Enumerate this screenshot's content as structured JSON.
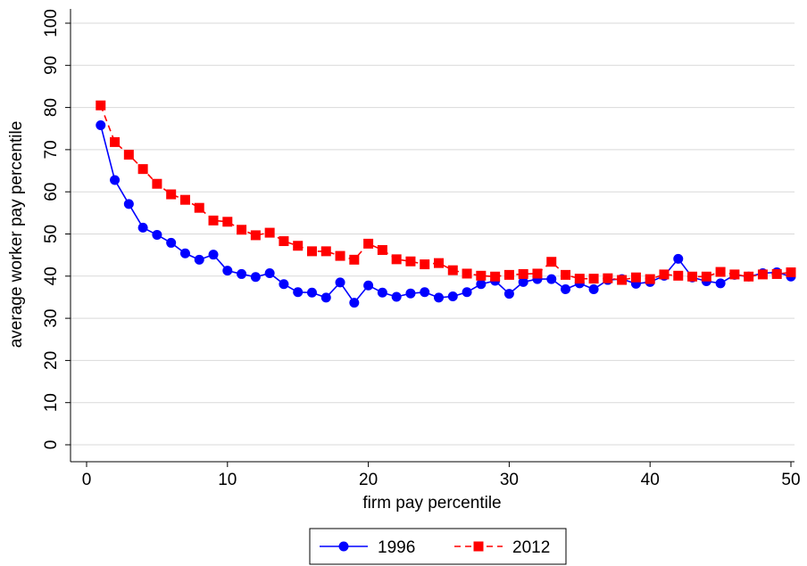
{
  "chart_data": {
    "type": "line",
    "title": "",
    "xlabel": "firm pay percentile",
    "ylabel": "average worker pay percentile",
    "xlim": [
      0,
      50
    ],
    "ylim": [
      0,
      100
    ],
    "xticks": [
      0,
      10,
      20,
      30,
      40,
      50
    ],
    "yticks": [
      0,
      10,
      20,
      30,
      40,
      50,
      60,
      70,
      80,
      90,
      100
    ],
    "grid": true,
    "legend_position": "bottom",
    "x": [
      1,
      2,
      3,
      4,
      5,
      6,
      7,
      8,
      9,
      10,
      11,
      12,
      13,
      14,
      15,
      16,
      17,
      18,
      19,
      20,
      21,
      22,
      23,
      24,
      25,
      26,
      27,
      28,
      29,
      30,
      31,
      32,
      33,
      34,
      35,
      36,
      37,
      38,
      39,
      40,
      41,
      42,
      43,
      44,
      45,
      46,
      47,
      48,
      49,
      50
    ],
    "series": [
      {
        "name": "1996",
        "color": "#0000ff",
        "marker": "circle",
        "line_style": "solid",
        "values": [
          75.8,
          62.8,
          57.1,
          51.5,
          49.8,
          47.9,
          45.4,
          43.9,
          45.1,
          41.3,
          40.5,
          39.8,
          40.7,
          38.1,
          36.2,
          36.1,
          34.9,
          38.5,
          33.7,
          37.8,
          36.1,
          35.1,
          35.9,
          36.2,
          34.9,
          35.2,
          36.2,
          38.1,
          38.9,
          35.8,
          38.6,
          39.3,
          39.3,
          36.9,
          38.3,
          36.9,
          39.1,
          39.3,
          38.2,
          38.6,
          40.1,
          44.1,
          39.7,
          38.8,
          38.3,
          40.3,
          39.9,
          40.7,
          40.9,
          39.9
        ]
      },
      {
        "name": "2012",
        "color": "#ff0000",
        "marker": "square",
        "line_style": "dashed",
        "values": [
          80.5,
          71.8,
          68.8,
          65.4,
          61.9,
          59.4,
          58.1,
          56.2,
          53.2,
          52.9,
          51.0,
          49.7,
          50.3,
          48.3,
          47.2,
          45.9,
          45.9,
          44.8,
          43.9,
          47.7,
          46.2,
          44.0,
          43.5,
          42.8,
          43.1,
          41.4,
          40.6,
          40.1,
          39.9,
          40.3,
          40.5,
          40.6,
          43.4,
          40.3,
          39.4,
          39.4,
          39.5,
          39.1,
          39.7,
          39.3,
          40.4,
          40.1,
          39.9,
          39.9,
          41.0,
          40.4,
          39.9,
          40.4,
          40.5,
          40.9
        ]
      }
    ]
  }
}
